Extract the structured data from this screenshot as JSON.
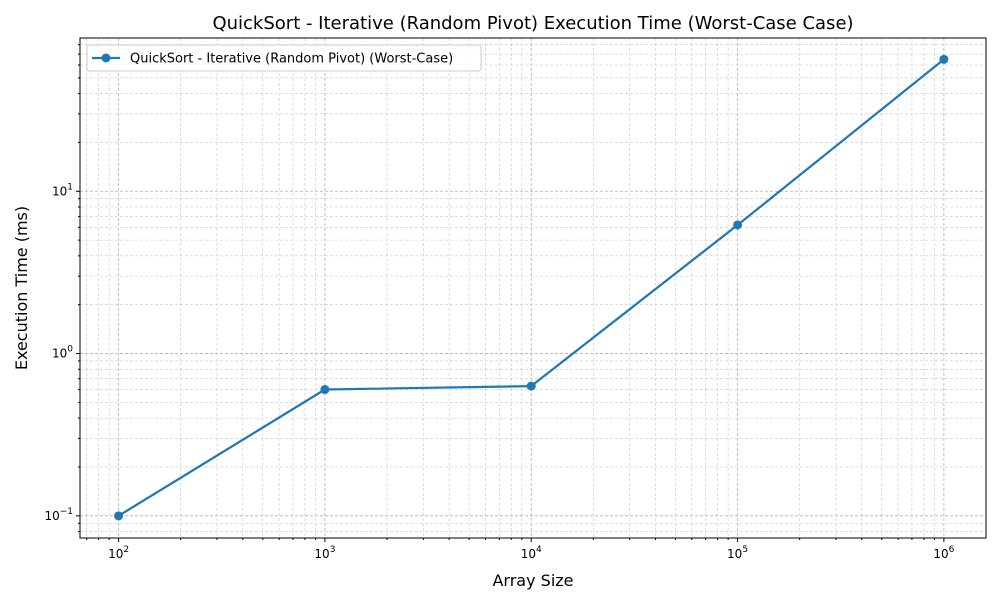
{
  "chart_data": {
    "type": "line",
    "title": "QuickSort - Iterative (Random Pivot) Execution Time (Worst-Case Case)",
    "xlabel": "Array Size",
    "ylabel": "Execution Time (ms)",
    "xscale": "log",
    "yscale": "log",
    "xlim": [
      65,
      1600000
    ],
    "ylim": [
      0.073,
      88
    ],
    "x_ticks": [
      {
        "value": 100,
        "label": "10",
        "exp": "2"
      },
      {
        "value": 1000,
        "label": "10",
        "exp": "3"
      },
      {
        "value": 10000,
        "label": "10",
        "exp": "4"
      },
      {
        "value": 100000,
        "label": "10",
        "exp": "5"
      },
      {
        "value": 1000000,
        "label": "10",
        "exp": "6"
      }
    ],
    "y_ticks": [
      {
        "value": 0.1,
        "label": "10",
        "exp": "−1"
      },
      {
        "value": 1,
        "label": "10",
        "exp": "0"
      },
      {
        "value": 10,
        "label": "10",
        "exp": "1"
      }
    ],
    "grid": true,
    "legend_position": "top-left",
    "series": [
      {
        "name": "QuickSort - Iterative (Random Pivot) (Worst-Case)",
        "color": "#1f77b4",
        "marker": "circle",
        "x": [
          100,
          1000,
          10000,
          100000,
          1000000
        ],
        "y": [
          0.1,
          0.6,
          0.63,
          6.2,
          65
        ]
      }
    ]
  }
}
